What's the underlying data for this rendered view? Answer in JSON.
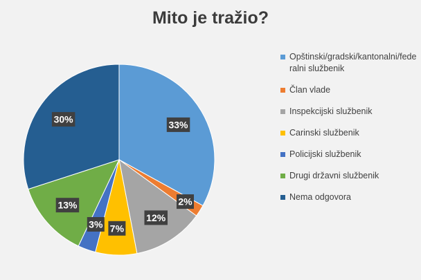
{
  "chart_data": {
    "type": "pie",
    "title": "Mito je tražio?",
    "slices": [
      {
        "label": "Opštinski/gradski/kantonalni/federalni službenik",
        "value": 33,
        "display": "33%",
        "color": "#5b9bd5"
      },
      {
        "label": "Član vlade",
        "value": 2,
        "display": "2%",
        "color": "#ed7d31"
      },
      {
        "label": "Inspekcijski službenik",
        "value": 12,
        "display": "12%",
        "color": "#a5a5a5"
      },
      {
        "label": "Carinski službenik",
        "value": 7,
        "display": "7%",
        "color": "#ffc000"
      },
      {
        "label": "Policijski službenik",
        "value": 3,
        "display": "3%",
        "color": "#4472c4"
      },
      {
        "label": "Drugi državni službenik",
        "value": 13,
        "display": "13%",
        "color": "#70ad47"
      },
      {
        "label": "Nema odgovora",
        "value": 30,
        "display": "30%",
        "color": "#255e91"
      }
    ],
    "legend_position": "right"
  }
}
